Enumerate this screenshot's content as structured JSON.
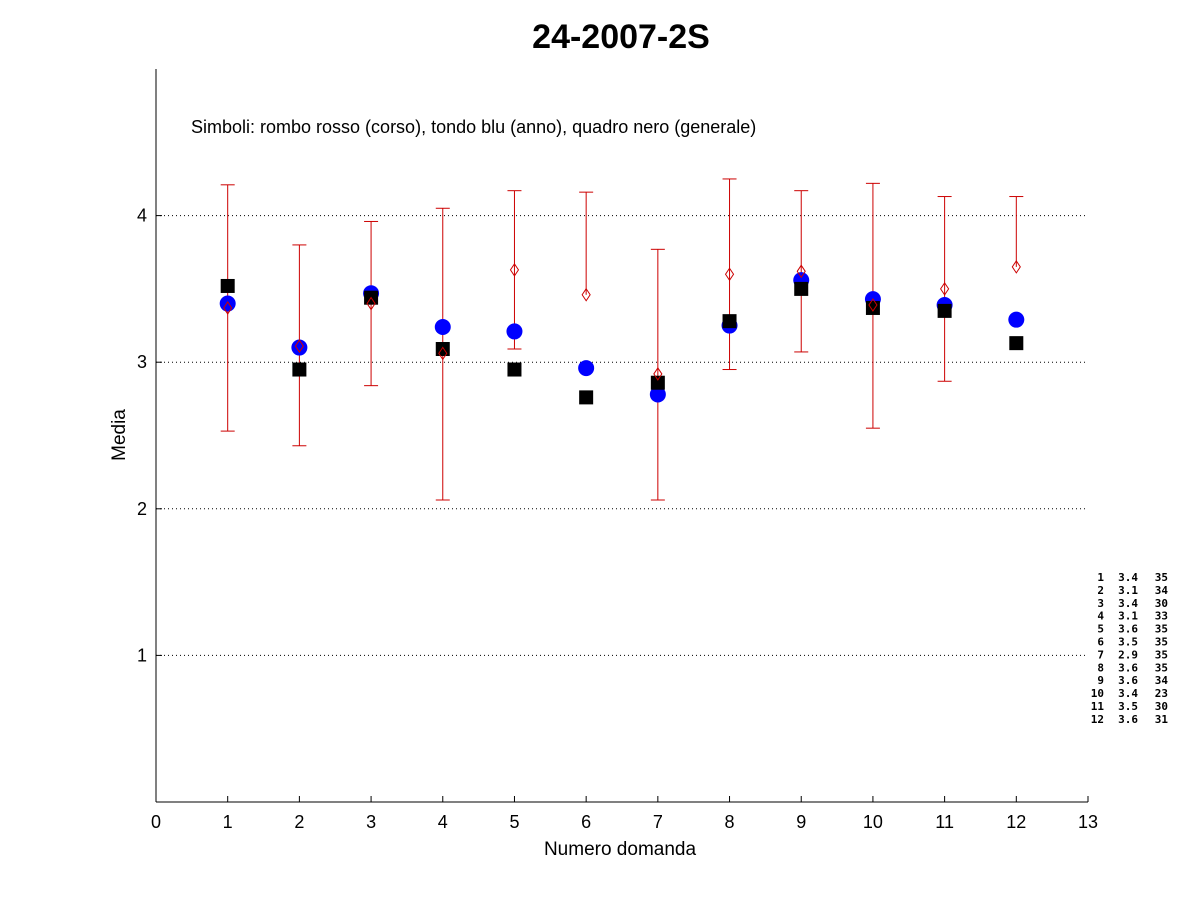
{
  "chart_data": {
    "type": "scatter",
    "title": "24-2007-2S",
    "xlabel": "Numero domanda",
    "ylabel": "Media",
    "annotation": "Simboli: rombo rosso (corso), tondo blu (anno), quadro nero (generale)",
    "xlim": [
      0,
      13
    ],
    "ylim": [
      0,
      5
    ],
    "xticks": [
      0,
      1,
      2,
      3,
      4,
      5,
      6,
      7,
      8,
      9,
      10,
      11,
      12,
      13
    ],
    "yticks": [
      1,
      2,
      3,
      4
    ],
    "grid": "y-dotted",
    "colors": {
      "corso": "#cc0000",
      "anno": "#0000ff",
      "generale": "#000000"
    },
    "series": [
      {
        "marker": "diamond",
        "x": [
          1,
          2,
          3,
          4,
          5,
          6,
          7,
          8,
          9,
          10,
          11,
          12
        ],
        "values": [
          3.37,
          3.11,
          3.4,
          3.06,
          3.63,
          3.46,
          2.92,
          3.6,
          3.62,
          3.39,
          3.5,
          3.65
        ],
        "err_low": [
          2.53,
          2.43,
          2.84,
          2.06,
          3.09,
          null,
          2.06,
          2.95,
          3.07,
          2.55,
          2.87,
          null
        ],
        "err_high": [
          4.21,
          3.8,
          3.96,
          4.05,
          4.17,
          4.16,
          3.77,
          4.25,
          4.17,
          4.22,
          4.13,
          4.13
        ]
      },
      {
        "marker": "circle",
        "x": [
          1,
          2,
          3,
          4,
          5,
          6,
          7,
          8,
          9,
          10,
          11,
          12
        ],
        "values": [
          3.4,
          3.1,
          3.47,
          3.24,
          3.21,
          2.96,
          2.78,
          3.25,
          3.56,
          3.43,
          3.39,
          3.29
        ]
      },
      {
        "marker": "square",
        "x": [
          1,
          2,
          3,
          4,
          5,
          6,
          7,
          8,
          9,
          10,
          11,
          12
        ],
        "values": [
          3.52,
          2.95,
          3.44,
          3.09,
          2.95,
          2.76,
          2.86,
          3.28,
          3.5,
          3.37,
          3.35,
          3.13
        ]
      }
    ],
    "side_table": [
      [
        "1",
        "3.4",
        "35"
      ],
      [
        "2",
        "3.1",
        "34"
      ],
      [
        "3",
        "3.4",
        "30"
      ],
      [
        "4",
        "3.1",
        "33"
      ],
      [
        "5",
        "3.6",
        "35"
      ],
      [
        "6",
        "3.5",
        "35"
      ],
      [
        "7",
        "2.9",
        "35"
      ],
      [
        "8",
        "3.6",
        "35"
      ],
      [
        "9",
        "3.6",
        "34"
      ],
      [
        "10",
        "3.4",
        "23"
      ],
      [
        "11",
        "3.5",
        "30"
      ],
      [
        "12",
        "3.6",
        "31"
      ]
    ]
  }
}
